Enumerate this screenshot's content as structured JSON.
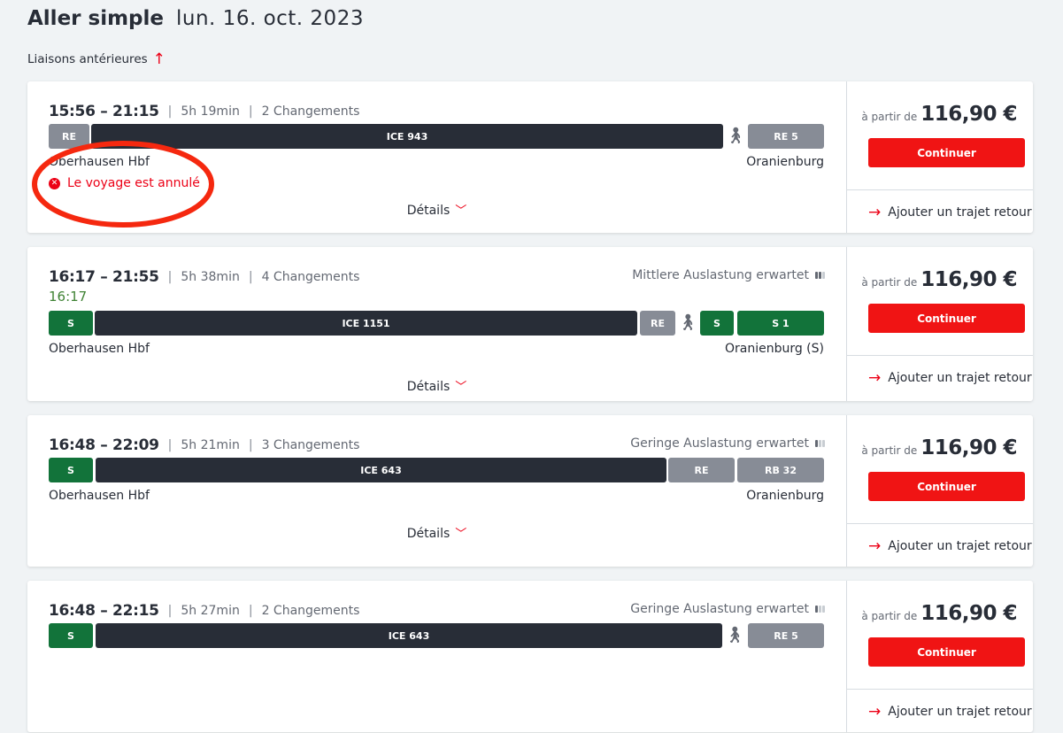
{
  "header": {
    "title": "Aller simple",
    "date": "lun. 16. oct. 2023",
    "earlier_label": "Liaisons antérieures"
  },
  "common": {
    "details_label": "Détails",
    "price_prefix": "à partir de",
    "continue_label": "Continuer",
    "return_label": "Ajouter un trajet retour"
  },
  "colors": {
    "accent": "#ec0016",
    "dark": "#282d37",
    "gray": "#878c96",
    "green": "#12733a"
  },
  "connections": [
    {
      "time": "15:56 – 21:15",
      "duration": "5h 19min",
      "changes": "2 Changements",
      "from": "Oberhausen Hbf",
      "to": "Oranienburg",
      "status": "Le voyage est annulé",
      "price": "116,90 €",
      "segments": [
        {
          "label": "RE",
          "type": "gray"
        },
        {
          "label": "ICE 943",
          "type": "dark"
        },
        {
          "label": "",
          "type": "walk"
        },
        {
          "label": "RE 5",
          "type": "gray"
        }
      ]
    },
    {
      "time": "16:17 – 21:55",
      "duration": "5h 38min",
      "changes": "4 Changements",
      "realtime": "16:17",
      "occupancy": "Mittlere Auslastung erwartet",
      "occupancy_level": 2,
      "from": "Oberhausen Hbf",
      "to": "Oranienburg (S)",
      "price": "116,90 €",
      "segments": [
        {
          "label": "S",
          "type": "green"
        },
        {
          "label": "ICE 1151",
          "type": "dark"
        },
        {
          "label": "RE",
          "type": "gray"
        },
        {
          "label": "",
          "type": "walk"
        },
        {
          "label": "S",
          "type": "green"
        },
        {
          "label": "S 1",
          "type": "green"
        }
      ]
    },
    {
      "time": "16:48 – 22:09",
      "duration": "5h 21min",
      "changes": "3 Changements",
      "occupancy": "Geringe Auslastung erwartet",
      "occupancy_level": 1,
      "from": "Oberhausen Hbf",
      "to": "Oranienburg",
      "price": "116,90 €",
      "segments": [
        {
          "label": "S",
          "type": "green"
        },
        {
          "label": "ICE 643",
          "type": "dark"
        },
        {
          "label": "RE",
          "type": "gray"
        },
        {
          "label": "RB 32",
          "type": "gray"
        }
      ]
    },
    {
      "time": "16:48 – 22:15",
      "duration": "5h 27min",
      "changes": "2 Changements",
      "occupancy": "Geringe Auslastung erwartet",
      "occupancy_level": 1,
      "price": "116,90 €",
      "segments": [
        {
          "label": "S",
          "type": "green"
        },
        {
          "label": "ICE 643",
          "type": "dark"
        },
        {
          "label": "",
          "type": "walk"
        },
        {
          "label": "RE 5",
          "type": "gray"
        }
      ]
    }
  ]
}
